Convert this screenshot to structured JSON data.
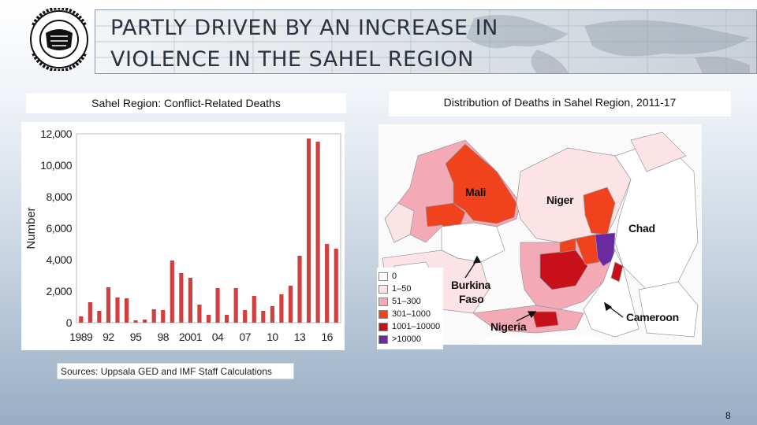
{
  "title": {
    "line1": "PARTLY DRIVEN BY AN INCREASE IN",
    "line2": "VIOLENCE IN THE SAHEL REGION"
  },
  "logo": {
    "text": "INTERNATIONAL MONETARY FUND"
  },
  "left_caption": "Sahel Region: Conflict-Related Deaths",
  "right_caption": "Distribution of Deaths in Sahel Region, 2011-17",
  "source": "Sources: Uppsala GED and IMF Staff Calculations",
  "page_number": "8",
  "map": {
    "labels": {
      "mali": "Mali",
      "niger": "Niger",
      "chad": "Chad",
      "burkina": "Burkina",
      "faso": "Faso",
      "nigeria": "Nigeria",
      "cameroon": "Cameroon"
    },
    "legend": [
      {
        "label": "0",
        "color": "#ffffff"
      },
      {
        "label": "1–50",
        "color": "#fbe3e6"
      },
      {
        "label": "51–300",
        "color": "#f3a9b6"
      },
      {
        "label": "301–1000",
        "color": "#f0421c"
      },
      {
        "label": "1001–10000",
        "color": "#c8101a"
      },
      {
        "label": ">10000",
        "color": "#6a2aa0"
      }
    ]
  },
  "colors": {
    "bar": "#d23f3f",
    "text": "#2a3340"
  },
  "chart_data": {
    "type": "bar",
    "title": "Sahel Region: Conflict-Related Deaths",
    "ylabel": "Number",
    "xlabel": "",
    "ylim": [
      0,
      12000
    ],
    "yticks": [
      0,
      2000,
      4000,
      6000,
      8000,
      10000,
      12000
    ],
    "ytick_labels": [
      "0",
      "2,000",
      "4,000",
      "6,000",
      "8,000",
      "10,000",
      "12,000"
    ],
    "xtick_labels": [
      "1989",
      "92",
      "95",
      "98",
      "2001",
      "04",
      "07",
      "10",
      "13",
      "16"
    ],
    "xtick_years": [
      1989,
      1992,
      1995,
      1998,
      2001,
      2004,
      2007,
      2010,
      2013,
      2016
    ],
    "grid": false,
    "categories": [
      1989,
      1990,
      1991,
      1992,
      1993,
      1994,
      1995,
      1996,
      1997,
      1998,
      1999,
      2000,
      2001,
      2002,
      2003,
      2004,
      2005,
      2006,
      2007,
      2008,
      2009,
      2010,
      2011,
      2012,
      2013,
      2014,
      2015,
      2016,
      2017
    ],
    "values": [
      400,
      1300,
      750,
      2250,
      1600,
      1550,
      150,
      200,
      850,
      800,
      3950,
      3150,
      2850,
      1150,
      500,
      2200,
      500,
      2200,
      800,
      1700,
      750,
      1050,
      1800,
      2350,
      4250,
      11700,
      11500,
      5000,
      4700
    ]
  }
}
